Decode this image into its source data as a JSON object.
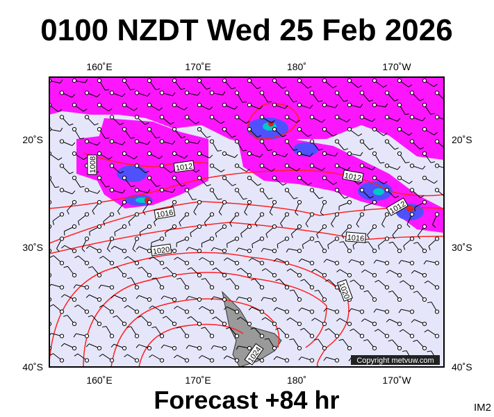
{
  "header": {
    "title": "0100 NZDT Wed 25 Feb 2026"
  },
  "map": {
    "lon_labels": [
      "160˚E",
      "170˚E",
      "180˚",
      "170˚W"
    ],
    "lat_labels": [
      "20˚S",
      "30˚S",
      "40˚S"
    ],
    "isobar_labels": [
      "1008",
      "1012",
      "1016",
      "1020",
      "1012",
      "1012",
      "1016",
      "1020",
      "1024"
    ],
    "copyright": "Copyright metvuw.com"
  },
  "footer": {
    "forecast": "Forecast +84 hr",
    "code": "IM2"
  }
}
